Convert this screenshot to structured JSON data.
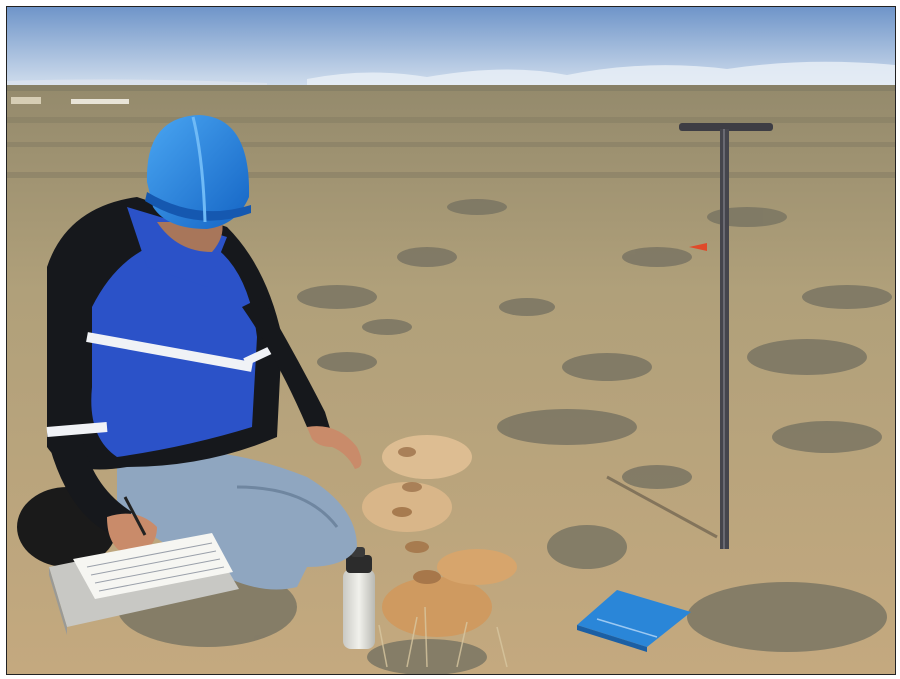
{
  "photo": {
    "subject": "field-soil-sampling",
    "colors": {
      "sky_top": "#6f95c9",
      "sky_bottom": "#c9d8ea",
      "ground_far": "#9c9270",
      "ground_near": "#c2a77c",
      "sage": "#7f7a66",
      "hard_hat": "#1f7fe0",
      "jacket_blue": "#2b52c8",
      "jacket_black": "#16181c",
      "jeans": "#8fa6c0",
      "binder": "#2a86d8",
      "probe": "#3d3d44",
      "soil_pile": "#cf9a60"
    }
  }
}
